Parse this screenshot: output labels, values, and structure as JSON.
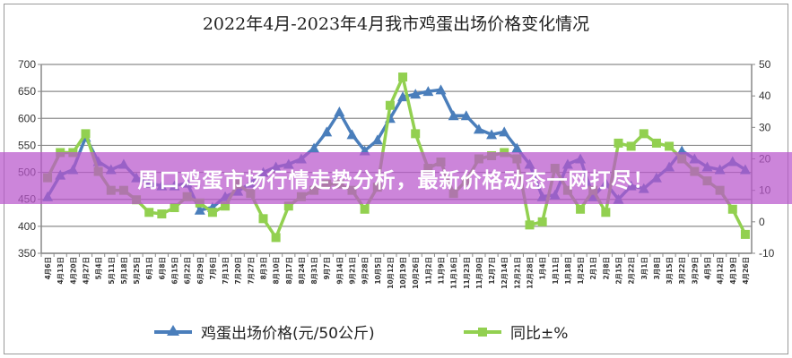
{
  "banner": {
    "text": "周口鸡蛋市场行情走势分析，最新价格动态一网打尽！"
  },
  "chart_data": {
    "type": "line",
    "title": "2022年4月-2023年4月我市鸡蛋出场价格变化情况",
    "categories": [
      "4月6日",
      "4月13日",
      "4月20日",
      "4月27日",
      "5月4日",
      "5月11日",
      "5月18日",
      "5月25日",
      "6月1日",
      "6月8日",
      "6月15日",
      "6月22日",
      "6月29日",
      "7月6日",
      "7月13日",
      "7月20日",
      "7月27日",
      "8月3日",
      "8月10日",
      "8月17日",
      "8月24日",
      "8月31日",
      "9月7日",
      "9月14日",
      "9月21日",
      "9月28日",
      "10月5日",
      "10月12日",
      "10月19日",
      "10月26日",
      "11月2日",
      "11月9日",
      "11月16日",
      "11月23日",
      "11月30日",
      "12月7日",
      "12月14日",
      "12月21日",
      "12月28日",
      "1月4日",
      "1月11日",
      "1月18日",
      "1月25日",
      "2月1日",
      "2月8日",
      "2月15日",
      "2月22日",
      "3月1日",
      "3月8日",
      "3月15日",
      "3月22日",
      "3月29日",
      "4月5日",
      "4月12日",
      "4月19日",
      "4月26日"
    ],
    "series": [
      {
        "name": "鸡蛋出场价格(元/50公斤)",
        "axis": "left",
        "color": "#4a7ebb",
        "marker": "triangle",
        "values": [
          455,
          495,
          505,
          565,
          520,
          505,
          515,
          490,
          480,
          475,
          475,
          480,
          430,
          435,
          455,
          465,
          480,
          500,
          510,
          515,
          525,
          545,
          575,
          612,
          570,
          540,
          560,
          600,
          640,
          645,
          650,
          653,
          605,
          605,
          580,
          570,
          575,
          545,
          515,
          455,
          458,
          515,
          525,
          455,
          480,
          450,
          475,
          470,
          490,
          510,
          540,
          525,
          510,
          505,
          520,
          505
        ]
      },
      {
        "name": "同比±%",
        "axis": "right",
        "color": "#92d050",
        "marker": "square",
        "values": [
          14,
          22,
          22,
          28,
          16,
          10,
          10,
          7,
          3,
          2.5,
          4.5,
          8,
          6,
          3,
          5,
          12,
          9,
          1,
          -5,
          5,
          8,
          10,
          12,
          12,
          10,
          4,
          11,
          37,
          46,
          28,
          17,
          19,
          9,
          13,
          20,
          21,
          22,
          20,
          -1,
          0,
          17,
          10,
          4,
          10,
          3,
          25,
          24,
          28,
          25,
          24,
          20,
          16,
          13,
          10,
          4,
          -4
        ]
      }
    ],
    "left_axis": {
      "range": [
        350,
        700
      ],
      "ticks": [
        350,
        400,
        450,
        500,
        550,
        600,
        650,
        700
      ]
    },
    "right_axis": {
      "range": [
        -10,
        50
      ],
      "ticks": [
        -10,
        0,
        10,
        20,
        30,
        40,
        50
      ]
    },
    "grid": true,
    "legend_position": "bottom"
  }
}
